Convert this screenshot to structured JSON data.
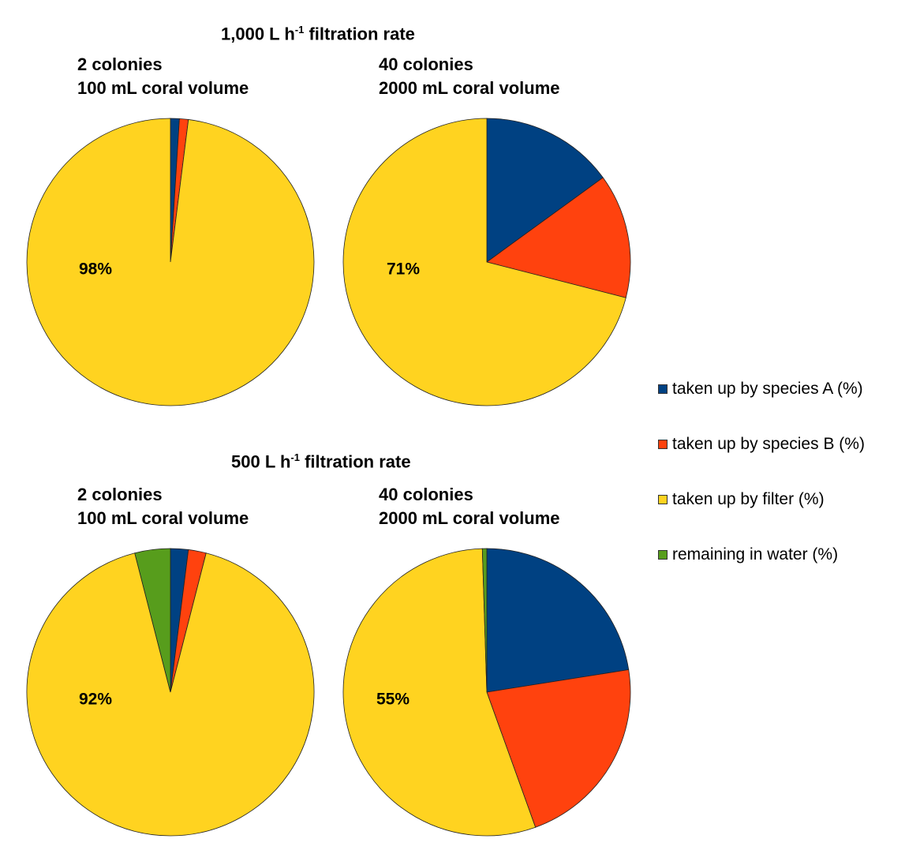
{
  "groups": [
    {
      "title_main": "1,000 L h",
      "title_sup": "-1",
      "title_rest": " filtration rate"
    },
    {
      "title_main": "500 L h",
      "title_sup": "-1",
      "title_rest": " filtration rate"
    }
  ],
  "chart_data": [
    {
      "type": "pie",
      "title": [
        "2 colonies",
        "100 mL coral volume"
      ],
      "labels": [
        "taken up by species A (%)",
        "taken up by species B (%)",
        "taken up by filter (%)",
        "remaining in water (%)"
      ],
      "values": [
        1,
        1,
        98,
        0
      ],
      "data_label": "98%"
    },
    {
      "type": "pie",
      "title": [
        "40 colonies",
        "2000 mL coral volume"
      ],
      "labels": [
        "taken up by species A (%)",
        "taken up by species B (%)",
        "taken up by filter (%)",
        "remaining in water (%)"
      ],
      "values": [
        15,
        14,
        71,
        0
      ],
      "data_label": "71%"
    },
    {
      "type": "pie",
      "title": [
        "2 colonies",
        "100 mL coral volume"
      ],
      "labels": [
        "taken up by species A (%)",
        "taken up by species B (%)",
        "taken up by filter (%)",
        "remaining in water (%)"
      ],
      "values": [
        2,
        2,
        92,
        4
      ],
      "data_label": "92%"
    },
    {
      "type": "pie",
      "title": [
        "40 colonies",
        "2000 mL coral volume"
      ],
      "labels": [
        "taken up by species A (%)",
        "taken up by species B (%)",
        "taken up by filter (%)",
        "remaining in water (%)"
      ],
      "values": [
        22.5,
        22,
        55,
        0.5
      ],
      "data_label": "55%"
    }
  ],
  "legend": {
    "placement": "right",
    "items": [
      {
        "label": "taken up by species A (%)",
        "color": "#004182"
      },
      {
        "label": "taken up by species B (%)",
        "color": "#ff420e"
      },
      {
        "label": "taken up by filter (%)",
        "color": "#ffd320"
      },
      {
        "label": "remaining in water (%)",
        "color": "#579d1c"
      }
    ]
  }
}
